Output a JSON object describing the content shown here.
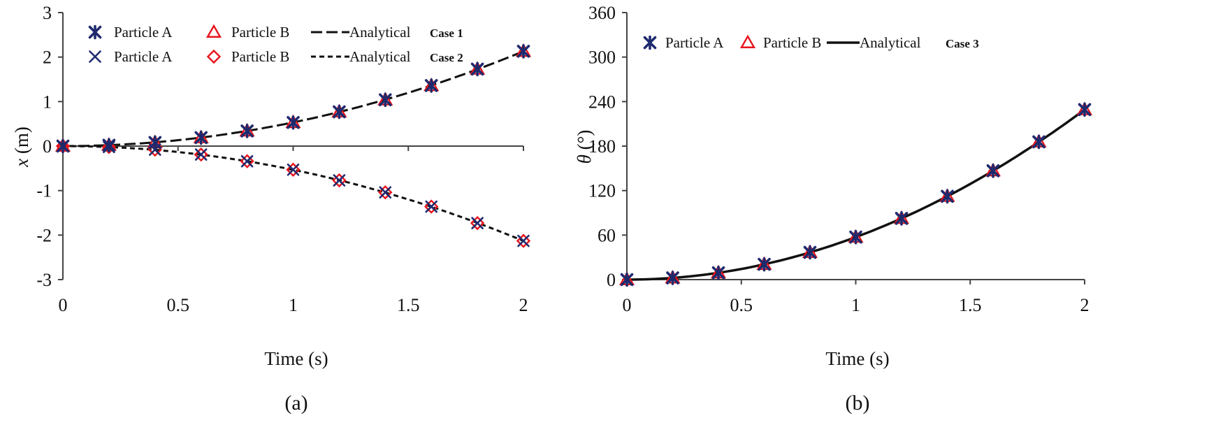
{
  "colors": {
    "particle_a": "#1f2a6e",
    "particle_b": "#e8141c",
    "analytical": "#111111",
    "axis": "#444444"
  },
  "chart_data": [
    {
      "type": "line",
      "panel": "a",
      "caption": "(a)",
      "xlabel": "Time (s)",
      "ylabel_symbol": "x",
      "ylabel_unit": " (m)",
      "xlim": [
        0,
        2
      ],
      "ylim": [
        -3,
        3
      ],
      "xticks": [
        0,
        0.5,
        1,
        1.5,
        2
      ],
      "yticks": [
        -3,
        -2,
        -1,
        0,
        1,
        2,
        3
      ],
      "xtick_labels": [
        "0",
        "0.5",
        "1",
        "1.5",
        "2"
      ],
      "ytick_labels": [
        "-3",
        "-2",
        "-1",
        "0",
        "1",
        "2",
        "3"
      ],
      "legend": [
        {
          "label": "Particle A",
          "marker": "star",
          "series": "case1_particle_a"
        },
        {
          "label": "Particle B",
          "marker": "triangle",
          "series": "case1_particle_b"
        },
        {
          "label": "Analytical",
          "style": "long-dash",
          "series": "case1_analytical"
        },
        {
          "label": "Case 1",
          "style": "case"
        },
        {
          "label": "Particle A",
          "marker": "x",
          "series": "case2_particle_a"
        },
        {
          "label": "Particle B",
          "marker": "diamond",
          "series": "case2_particle_b"
        },
        {
          "label": "Analytical",
          "style": "short-dash",
          "series": "case2_analytical"
        },
        {
          "label": "Case 2",
          "style": "case"
        }
      ],
      "x": [
        0,
        0.2,
        0.4,
        0.6,
        0.8,
        1.0,
        1.2,
        1.4,
        1.6,
        1.8,
        2.0
      ],
      "series": [
        {
          "name": "Case 1 Particle A",
          "marker": "star",
          "values": [
            0,
            0.02,
            0.08,
            0.19,
            0.34,
            0.53,
            0.77,
            1.04,
            1.36,
            1.73,
            2.13
          ]
        },
        {
          "name": "Case 1 Particle B",
          "marker": "triangle",
          "values": [
            0,
            0.02,
            0.08,
            0.19,
            0.34,
            0.53,
            0.77,
            1.04,
            1.36,
            1.73,
            2.13
          ]
        },
        {
          "name": "Case 1 Analytical",
          "style": "long-dash",
          "values": [
            0,
            0.02,
            0.08,
            0.19,
            0.34,
            0.53,
            0.77,
            1.04,
            1.36,
            1.73,
            2.13
          ]
        },
        {
          "name": "Case 2 Particle A",
          "marker": "x",
          "values": [
            0,
            -0.02,
            -0.08,
            -0.19,
            -0.34,
            -0.53,
            -0.77,
            -1.04,
            -1.36,
            -1.73,
            -2.13
          ]
        },
        {
          "name": "Case 2 Particle B",
          "marker": "diamond",
          "values": [
            0,
            -0.02,
            -0.08,
            -0.19,
            -0.34,
            -0.53,
            -0.77,
            -1.04,
            -1.36,
            -1.73,
            -2.13
          ]
        },
        {
          "name": "Case 2 Analytical",
          "style": "short-dash",
          "values": [
            0,
            -0.02,
            -0.08,
            -0.19,
            -0.34,
            -0.53,
            -0.77,
            -1.04,
            -1.36,
            -1.73,
            -2.13
          ]
        }
      ]
    },
    {
      "type": "line",
      "panel": "b",
      "caption": "(b)",
      "xlabel": "Time (s)",
      "ylabel_symbol": "θ",
      "ylabel_unit": " (°)",
      "xlim": [
        0,
        2
      ],
      "ylim": [
        0,
        360
      ],
      "xticks": [
        0,
        0.5,
        1,
        1.5,
        2
      ],
      "yticks": [
        0,
        60,
        120,
        180,
        240,
        300,
        360
      ],
      "xtick_labels": [
        "0",
        "0.5",
        "1",
        "1.5",
        "2"
      ],
      "ytick_labels": [
        "0",
        "60",
        "120",
        "180",
        "240",
        "300",
        "360"
      ],
      "legend": [
        {
          "label": "Particle A",
          "marker": "star"
        },
        {
          "label": "Particle B",
          "marker": "triangle"
        },
        {
          "label": "Analytical",
          "style": "solid"
        },
        {
          "label": "Case 3",
          "style": "case"
        }
      ],
      "x": [
        0,
        0.2,
        0.4,
        0.6,
        0.8,
        1.0,
        1.2,
        1.4,
        1.6,
        1.8,
        2.0
      ],
      "series": [
        {
          "name": "Case 3 Particle A",
          "marker": "star",
          "values": [
            0,
            2.3,
            9.2,
            20.6,
            36.7,
            57.3,
            82.5,
            112.3,
            146.7,
            185.7,
            229.2
          ]
        },
        {
          "name": "Case 3 Particle B",
          "marker": "triangle",
          "values": [
            0,
            2.3,
            9.2,
            20.6,
            36.7,
            57.3,
            82.5,
            112.3,
            146.7,
            185.7,
            229.2
          ]
        },
        {
          "name": "Case 3 Analytical",
          "style": "solid",
          "values": [
            0,
            2.3,
            9.2,
            20.6,
            36.7,
            57.3,
            82.5,
            112.3,
            146.7,
            185.7,
            229.2
          ]
        }
      ]
    }
  ]
}
